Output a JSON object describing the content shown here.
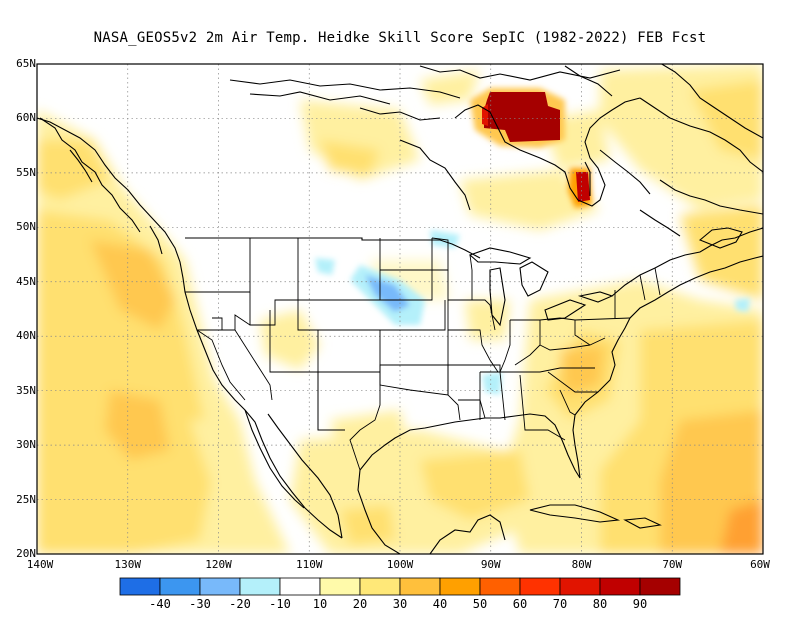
{
  "title": "NASA_GEOS5v2  2m Air Temp. Heidke Skill Score SepIC (1982-2022) FEB Fcst",
  "map": {
    "lon_range": [
      -140,
      -60
    ],
    "lat_range": [
      20,
      65
    ],
    "lat_labels": [
      "20N",
      "25N",
      "30N",
      "35N",
      "40N",
      "45N",
      "50N",
      "55N",
      "60N",
      "65N"
    ],
    "lon_labels": [
      "140W",
      "130W",
      "120W",
      "110W",
      "100W",
      "90W",
      "80W",
      "70W",
      "60W"
    ],
    "grid": "dotted"
  },
  "colorbar": {
    "colors": [
      "#1E6EE6",
      "#3C96F0",
      "#78B9FA",
      "#B4F0FA",
      "#FFFFFF",
      "#FFFAAA",
      "#FFE878",
      "#FFC03C",
      "#FFA000",
      "#FF6000",
      "#FF3200",
      "#E11400",
      "#C00000",
      "#A50000"
    ],
    "labels": [
      "-40",
      "-30",
      "-20",
      "-10",
      "10",
      "20",
      "30",
      "40",
      "50",
      "60",
      "70",
      "80",
      "90"
    ]
  },
  "features": {
    "land_boundaries": "coastlines, country borders and US state lines",
    "skill_fill": "shaded Heidke skill score"
  }
}
